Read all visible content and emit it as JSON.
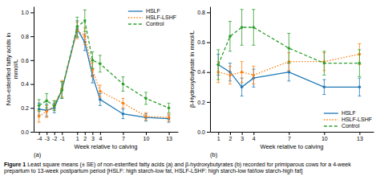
{
  "chart_data": [
    {
      "type": "line",
      "x_label": "Week relative to calving",
      "y_label": "Non-esterified fatty acids in\nmmol/L",
      "annotations": [
        "(a)"
      ],
      "x": [
        -4,
        -3,
        -2,
        -1,
        1,
        2,
        3,
        4,
        7,
        10,
        13
      ],
      "series": [
        {
          "name": "HSLF",
          "line_style": "solid",
          "marker": "circle",
          "values": [
            0.19,
            0.18,
            0.2,
            0.35,
            0.86,
            0.75,
            0.47,
            0.27,
            0.15,
            0.12,
            0.11
          ],
          "errors": [
            0.05,
            0.05,
            0.04,
            0.07,
            0.07,
            0.07,
            0.06,
            0.05,
            0.04,
            0.03,
            0.03
          ]
        },
        {
          "name": "HSLF-LSHF",
          "line_style": "dotted",
          "marker": "circle",
          "values": [
            0.13,
            0.17,
            0.22,
            0.36,
            0.85,
            0.8,
            0.52,
            0.34,
            0.24,
            0.13,
            0.12
          ],
          "errors": [
            0.05,
            0.05,
            0.04,
            0.07,
            0.07,
            0.07,
            0.06,
            0.05,
            0.04,
            0.03,
            0.03
          ]
        },
        {
          "name": "Control",
          "line_style": "dashed",
          "marker": "circle",
          "values": [
            0.22,
            0.26,
            0.22,
            0.35,
            0.88,
            0.93,
            0.6,
            0.57,
            0.4,
            0.28,
            0.2
          ],
          "errors": [
            0.05,
            0.06,
            0.04,
            0.07,
            0.08,
            0.09,
            0.07,
            0.07,
            0.06,
            0.05,
            0.04
          ]
        }
      ],
      "xlim": [
        -4.7,
        14.2
      ],
      "xticks": [
        -4,
        -3,
        -2,
        -1,
        1,
        2,
        3,
        4,
        7,
        10,
        13
      ],
      "ylim": [
        0.0,
        1.05
      ],
      "yticks": [
        {
          "value": 0.0,
          "label": "0.0"
        },
        0.2,
        0.4,
        0.6,
        0.8,
        {
          "value": 1.0,
          "label": "1.0"
        }
      ],
      "legend": "upper right"
    },
    {
      "type": "line",
      "x_label": "Week relative to calving",
      "y_label": "β-Hydroxybutyrate in mmol/L",
      "annotations": [
        "(b)"
      ],
      "x": [
        1,
        2,
        3,
        4,
        7,
        10,
        13
      ],
      "series": [
        {
          "name": "HSLF",
          "line_style": "solid",
          "marker": "circle",
          "values": [
            0.45,
            0.4,
            0.3,
            0.36,
            0.4,
            0.3,
            0.3
          ],
          "errors": [
            0.07,
            0.06,
            0.06,
            0.06,
            0.06,
            0.05,
            0.06
          ]
        },
        {
          "name": "HSLF-LSHF",
          "line_style": "dotted",
          "marker": "circle",
          "values": [
            0.4,
            0.38,
            0.4,
            0.38,
            0.47,
            0.47,
            0.52
          ],
          "errors": [
            0.07,
            0.06,
            0.07,
            0.06,
            0.06,
            0.06,
            0.07
          ]
        },
        {
          "name": "Control",
          "line_style": "dashed",
          "marker": "circle",
          "values": [
            0.45,
            0.64,
            0.7,
            0.7,
            0.56,
            0.46,
            0.46
          ],
          "errors": [
            0.1,
            0.1,
            0.12,
            0.12,
            0.1,
            0.08,
            0.09
          ]
        }
      ],
      "xlim": [
        0.3,
        14.2
      ],
      "xticks": [
        1,
        2,
        3,
        4,
        7,
        10,
        13
      ],
      "ylim": [
        0.0,
        0.84
      ],
      "yticks": [
        {
          "value": 0.0,
          "label": "0.0"
        },
        0.2,
        0.4,
        0.6,
        0.8
      ],
      "legend": "lower right"
    }
  ],
  "caption_bold": "Figure 1",
  "caption": "Least square means (± SE) of non-esterified fatty acids (a) and β-hydroxybutyrates (b) recorded for primiparous cows for a 4-week prepartum to 13-week postpartum period [HSLF: high starch-low fat, HSLF-LSHF: high starch-low fat/low starch-high fat]"
}
